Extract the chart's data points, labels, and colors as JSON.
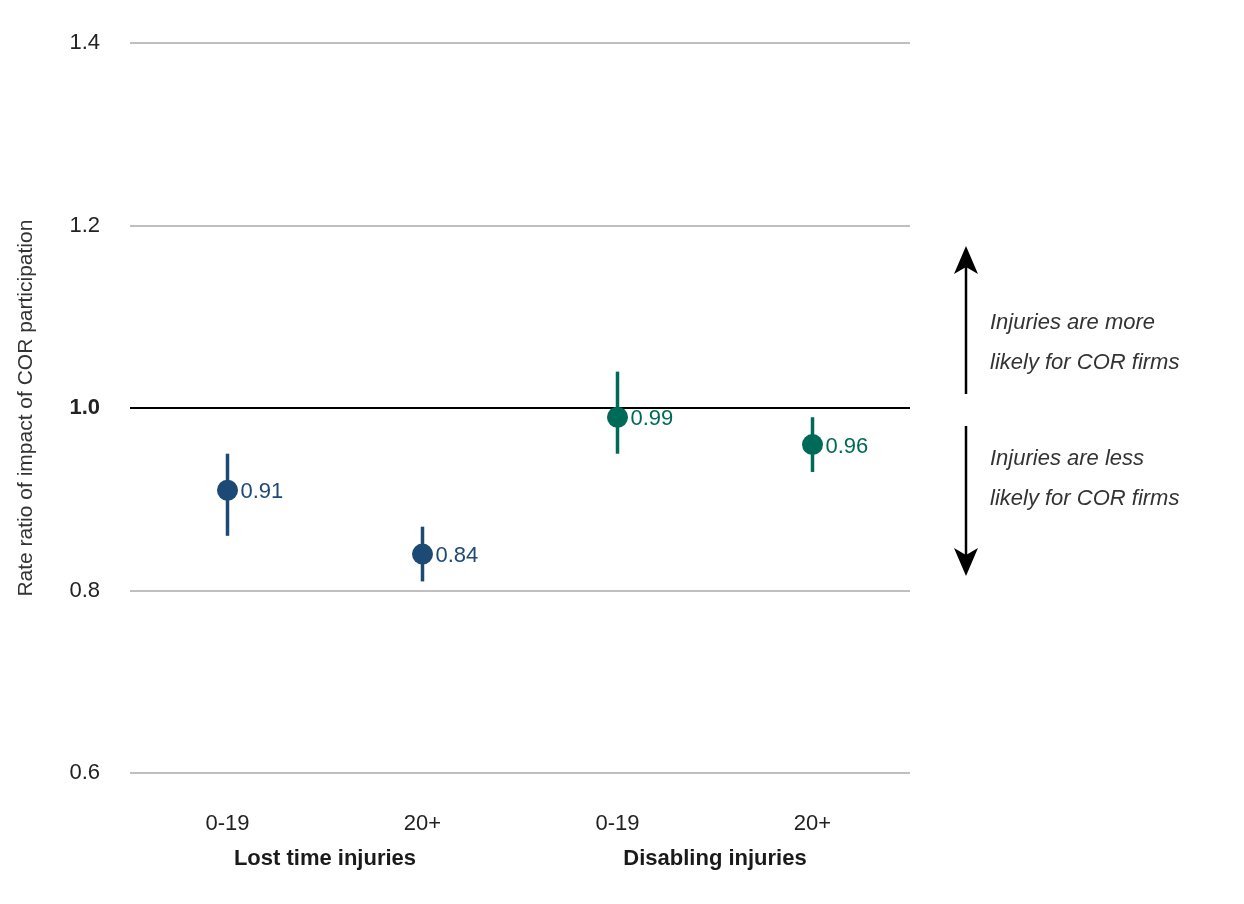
{
  "chart_data": {
    "type": "scatter",
    "ylabel": "Rate ratio of impact of COR participation",
    "categories": [
      "0-19",
      "20+",
      "0-19",
      "20+"
    ],
    "values": [
      0.91,
      0.84,
      0.99,
      0.96
    ],
    "colors": [
      "#1c4a74",
      "#1c4a74",
      "#006a58",
      "#006a58"
    ],
    "errors": [
      [
        0.86,
        0.95
      ],
      [
        0.81,
        0.87
      ],
      [
        0.95,
        1.04
      ],
      [
        0.93,
        0.99
      ]
    ],
    "ylim": [
      0.6,
      1.4
    ],
    "yticks": [
      0.6,
      0.8,
      {
        "value": 1.0,
        "label": "1.0"
      },
      1.2,
      1.4
    ],
    "ref_lines": [
      {
        "axis": "y",
        "value": 1.0,
        "color": "#000000"
      }
    ],
    "annotations": [
      "Lost time injuries",
      "Disabling injuries",
      "Injuries are more likely for COR firms",
      "Injuries are less likely for COR firms"
    ],
    "data_labels": true,
    "marker": "circle",
    "grid": "y",
    "legend": false
  }
}
